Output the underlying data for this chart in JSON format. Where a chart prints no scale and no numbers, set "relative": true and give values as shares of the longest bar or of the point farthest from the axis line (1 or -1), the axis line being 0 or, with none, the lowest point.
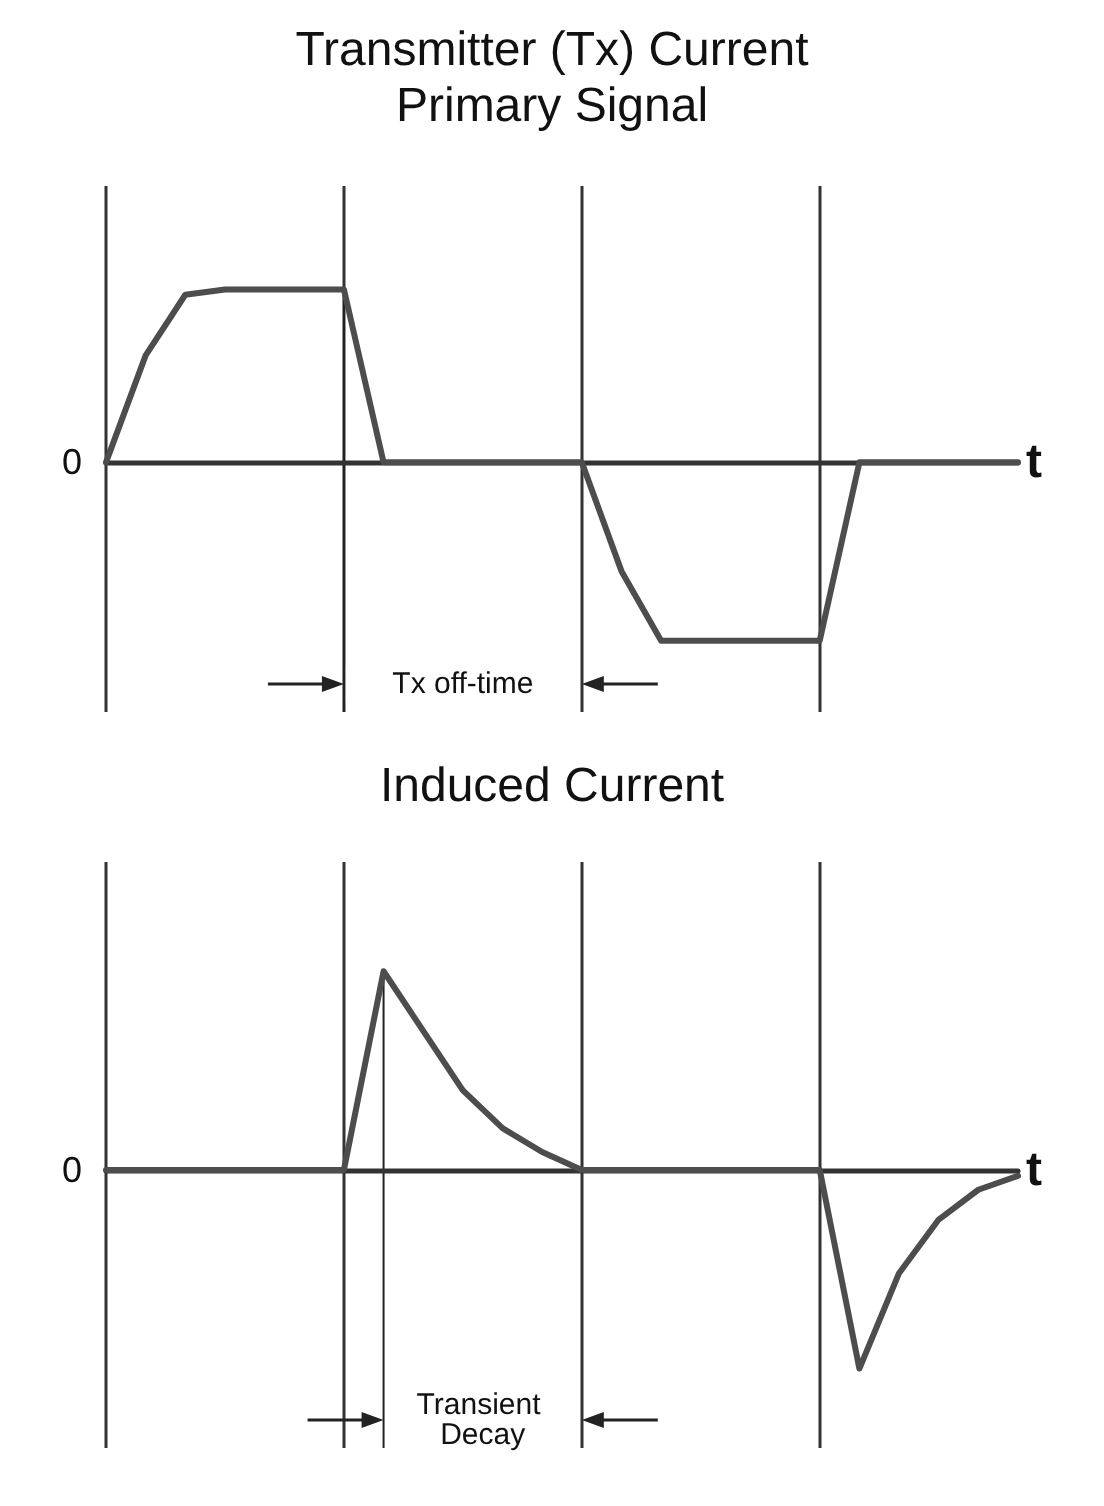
{
  "chart_data": [
    {
      "type": "line",
      "title": "Transmitter (Tx) Current",
      "subtitle": "Primary Signal",
      "xlabel": "t",
      "relative": true,
      "grid": "x",
      "categories": [
        null,
        null,
        null,
        null,
        null,
        null,
        null,
        null,
        null,
        null,
        null,
        null,
        null,
        null,
        null,
        null,
        null,
        null,
        null,
        null,
        null,
        null,
        null,
        null
      ],
      "series": [
        {
          "color": "#4d4d4d",
          "values": [
            0,
            0.6,
            0.94,
            0.97,
            0.97,
            0.97,
            0.97,
            0,
            0,
            0,
            0,
            0,
            0,
            -0.61,
            -1,
            -1,
            -1,
            -1,
            -1,
            0,
            0,
            0,
            0,
            0
          ]
        }
      ],
      "annotations": [
        "0",
        "Tx off-time"
      ]
    },
    {
      "type": "line",
      "title": "Induced Current",
      "xlabel": "t",
      "relative": true,
      "grid": "x",
      "categories": [
        null,
        null,
        null,
        null,
        null,
        null,
        null,
        null,
        null,
        null,
        null,
        null,
        null,
        null,
        null,
        null,
        null,
        null,
        null,
        null,
        null,
        null,
        null,
        null
      ],
      "series": [
        {
          "color": "#4d4d4d",
          "values": [
            0,
            0,
            0,
            0,
            0,
            0,
            0,
            1,
            0.7,
            0.4,
            0.21,
            0.09,
            0,
            0,
            0,
            0,
            0,
            0,
            0,
            -1,
            -0.52,
            -0.25,
            -0.1,
            -0.03
          ]
        }
      ],
      "annotations": [
        "0",
        "Transient Decay"
      ]
    }
  ]
}
